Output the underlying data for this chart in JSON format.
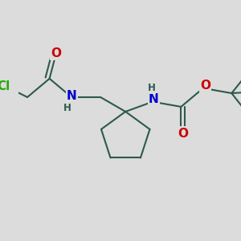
{
  "bg_color": "#dcdcdc",
  "bond_color": "#2d5a4a",
  "bond_width": 1.5,
  "atom_colors": {
    "N": "#0000cc",
    "O": "#cc0000",
    "Cl": "#22aa00",
    "H": "#2d5a4a"
  },
  "font_size_atom": 11,
  "font_size_small": 8.5,
  "figsize": [
    3.0,
    3.0
  ],
  "dpi": 100,
  "xlim": [
    0,
    10
  ],
  "ylim": [
    0,
    10
  ]
}
